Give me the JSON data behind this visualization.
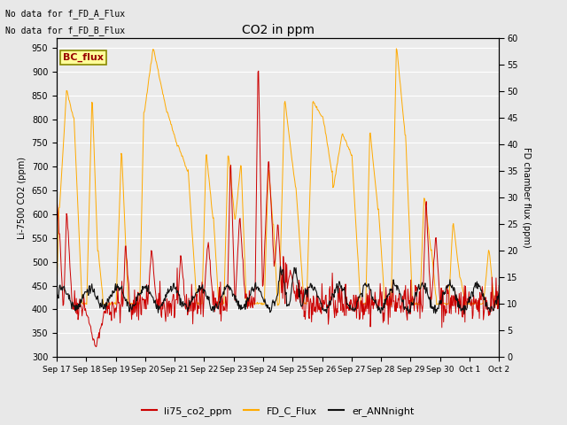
{
  "title": "CO2 in ppm",
  "ylabel_left": "Li-7500 CO2 (ppm)",
  "ylabel_right": "FD chamber flux (ppm)",
  "ylim_left": [
    300,
    970
  ],
  "ylim_right": [
    0,
    60
  ],
  "yticks_left": [
    300,
    350,
    400,
    450,
    500,
    550,
    600,
    650,
    700,
    750,
    800,
    850,
    900,
    950
  ],
  "yticks_right": [
    0,
    5,
    10,
    15,
    20,
    25,
    30,
    35,
    40,
    45,
    50,
    55,
    60
  ],
  "xtick_labels": [
    "Sep 17",
    "Sep 18",
    "Sep 19",
    "Sep 20",
    "Sep 21",
    "Sep 22",
    "Sep 23",
    "Sep 24",
    "Sep 25",
    "Sep 26",
    "Sep 27",
    "Sep 28",
    "Sep 29",
    "Sep 30",
    "Oct 1",
    "Oct 2"
  ],
  "text_no_data_1": "No data for f_FD_A_Flux",
  "text_no_data_2": "No data for f_FD_B_Flux",
  "bc_flux_label": "BC_flux",
  "legend_entries": [
    "li75_co2_ppm",
    "FD_C_Flux",
    "er_ANNnight"
  ],
  "color_red": "#cc0000",
  "color_orange": "#ffaa00",
  "color_black": "#111111",
  "background_color": "#e8e8e8",
  "plot_bg_color": "#ebebeb",
  "grid_color": "#ffffff",
  "bc_flux_bg": "#ffff99",
  "bc_flux_border": "#888800",
  "bc_flux_text_color": "#990000"
}
